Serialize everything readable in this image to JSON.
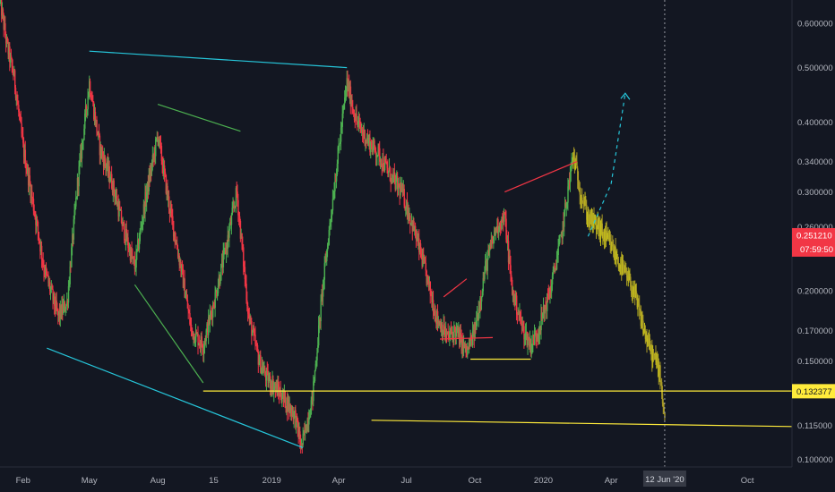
{
  "chart_data": {
    "type": "candlestick",
    "y_scale": "log",
    "ylim": [
      0.097,
      0.66
    ],
    "xlim": [
      "2018-01-01",
      "2020-11-30"
    ],
    "y_ticks": [
      {
        "value": 0.6,
        "label": "0.600000"
      },
      {
        "value": 0.5,
        "label": "0.500000"
      },
      {
        "value": 0.4,
        "label": "0.400000"
      },
      {
        "value": 0.34,
        "label": "0.340000"
      },
      {
        "value": 0.3,
        "label": "0.300000"
      },
      {
        "value": 0.26,
        "label": "0.260000"
      },
      {
        "value": 0.2,
        "label": "0.200000"
      },
      {
        "value": 0.17,
        "label": "0.170000"
      },
      {
        "value": 0.15,
        "label": "0.150000"
      },
      {
        "value": 0.115,
        "label": "0.115000"
      },
      {
        "value": 0.1,
        "label": "0.100000"
      }
    ],
    "x_ticks": [
      {
        "date": "2018-02-01",
        "label": "Feb"
      },
      {
        "date": "2018-05-01",
        "label": "May"
      },
      {
        "date": "2018-08-01",
        "label": "Aug"
      },
      {
        "date": "2018-10-15",
        "label": "15"
      },
      {
        "date": "2019-01-01",
        "label": "2019"
      },
      {
        "date": "2019-04-01",
        "label": "Apr"
      },
      {
        "date": "2019-07-01",
        "label": "Jul"
      },
      {
        "date": "2019-10-01",
        "label": "Oct"
      },
      {
        "date": "2020-01-01",
        "label": "2020"
      },
      {
        "date": "2020-04-01",
        "label": "Apr"
      },
      {
        "date": "2020-10-01",
        "label": "Oct"
      }
    ],
    "current_price": {
      "value": 0.25121,
      "label": "0.251210",
      "color": "#f23645"
    },
    "countdown": {
      "label": "07:59:50",
      "color": "#f23645"
    },
    "level_price": {
      "value": 0.132377,
      "label": "0.132377",
      "color": "#ffeb3b"
    },
    "crosshair": {
      "date": "2020-06-12",
      "label": "12 Jun '20"
    },
    "price_path": [
      [
        "2018-01-01",
        0.66
      ],
      [
        "2018-01-10",
        0.55
      ],
      [
        "2018-01-20",
        0.48
      ],
      [
        "2018-02-01",
        0.36
      ],
      [
        "2018-02-20",
        0.26
      ],
      [
        "2018-03-01",
        0.22
      ],
      [
        "2018-03-20",
        0.18
      ],
      [
        "2018-04-01",
        0.19
      ],
      [
        "2018-04-15",
        0.31
      ],
      [
        "2018-05-01",
        0.47
      ],
      [
        "2018-05-15",
        0.36
      ],
      [
        "2018-06-01",
        0.31
      ],
      [
        "2018-06-15",
        0.26
      ],
      [
        "2018-07-01",
        0.22
      ],
      [
        "2018-07-15",
        0.29
      ],
      [
        "2018-08-01",
        0.38
      ],
      [
        "2018-08-15",
        0.29
      ],
      [
        "2018-09-01",
        0.22
      ],
      [
        "2018-09-15",
        0.17
      ],
      [
        "2018-10-01",
        0.16
      ],
      [
        "2018-10-15",
        0.19
      ],
      [
        "2018-11-01",
        0.24
      ],
      [
        "2018-11-15",
        0.3
      ],
      [
        "2018-12-01",
        0.18
      ],
      [
        "2018-12-15",
        0.15
      ],
      [
        "2018-12-25",
        0.14
      ],
      [
        "2019-01-15",
        0.13
      ],
      [
        "2019-02-01",
        0.12
      ],
      [
        "2019-02-10",
        0.105
      ],
      [
        "2019-02-25",
        0.13
      ],
      [
        "2019-03-10",
        0.2
      ],
      [
        "2019-03-25",
        0.3
      ],
      [
        "2019-04-12",
        0.47
      ],
      [
        "2019-04-25",
        0.4
      ],
      [
        "2019-05-10",
        0.37
      ],
      [
        "2019-05-25",
        0.35
      ],
      [
        "2019-06-10",
        0.32
      ],
      [
        "2019-06-25",
        0.3
      ],
      [
        "2019-07-10",
        0.26
      ],
      [
        "2019-07-25",
        0.22
      ],
      [
        "2019-08-10",
        0.18
      ],
      [
        "2019-08-25",
        0.165
      ],
      [
        "2019-09-05",
        0.17
      ],
      [
        "2019-09-20",
        0.155
      ],
      [
        "2019-10-01",
        0.17
      ],
      [
        "2019-10-15",
        0.22
      ],
      [
        "2019-10-30",
        0.26
      ],
      [
        "2019-11-10",
        0.27
      ],
      [
        "2019-11-20",
        0.2
      ],
      [
        "2019-12-05",
        0.17
      ],
      [
        "2019-12-15",
        0.16
      ],
      [
        "2019-12-25",
        0.17
      ],
      [
        "2020-01-10",
        0.2
      ],
      [
        "2020-01-25",
        0.25
      ],
      [
        "2020-02-10",
        0.35
      ],
      [
        "2020-02-20",
        0.3
      ],
      [
        "2020-03-01",
        0.27
      ],
      [
        "2020-03-15",
        0.26
      ],
      [
        "2020-04-01",
        0.24
      ],
      [
        "2020-04-15",
        0.22
      ],
      [
        "2020-05-01",
        0.2
      ],
      [
        "2020-05-15",
        0.17
      ],
      [
        "2020-05-25",
        0.155
      ],
      [
        "2020-06-05",
        0.145
      ],
      [
        "2020-06-12",
        0.118
      ]
    ],
    "annotations": [
      {
        "name": "trendline-cyan-top",
        "color": "#26c6da",
        "style": "solid",
        "points": [
          [
            "2018-05-01",
            0.535
          ],
          [
            "2019-04-12",
            0.5
          ]
        ]
      },
      {
        "name": "trendline-cyan-bottom",
        "color": "#26c6da",
        "style": "solid",
        "points": [
          [
            "2018-03-05",
            0.158
          ],
          [
            "2019-02-12",
            0.105
          ]
        ]
      },
      {
        "name": "trendline-green-top",
        "color": "#4caf50",
        "style": "solid",
        "points": [
          [
            "2018-08-01",
            0.43
          ],
          [
            "2018-11-20",
            0.385
          ]
        ]
      },
      {
        "name": "trendline-green-bottom",
        "color": "#4caf50",
        "style": "solid",
        "points": [
          [
            "2018-07-01",
            0.205
          ],
          [
            "2018-10-01",
            0.137
          ]
        ]
      },
      {
        "name": "support-line-upper",
        "color": "#ffeb3b",
        "style": "solid",
        "points": [
          [
            "2018-10-01",
            0.1325
          ],
          [
            "2020-11-30",
            0.1325
          ]
        ]
      },
      {
        "name": "support-line-lower",
        "color": "#ffeb3b",
        "style": "solid",
        "points": [
          [
            "2019-05-15",
            0.1175
          ],
          [
            "2020-11-30",
            0.1145
          ]
        ]
      },
      {
        "name": "trendline-red-upper",
        "color": "#f23645",
        "style": "solid",
        "points": [
          [
            "2019-11-10",
            0.3
          ],
          [
            "2020-02-15",
            0.34
          ]
        ]
      },
      {
        "name": "trendline-red-small",
        "color": "#f23645",
        "style": "solid",
        "points": [
          [
            "2019-08-20",
            0.195
          ],
          [
            "2019-09-20",
            0.21
          ]
        ]
      },
      {
        "name": "trendline-red-low",
        "color": "#f23645",
        "style": "solid",
        "points": [
          [
            "2019-08-15",
            0.164
          ],
          [
            "2019-10-25",
            0.165
          ]
        ]
      },
      {
        "name": "trendline-yellow-low",
        "color": "#ffeb3b",
        "style": "solid",
        "points": [
          [
            "2019-09-25",
            0.151
          ],
          [
            "2019-12-15",
            0.151
          ]
        ]
      },
      {
        "name": "projection-dashed",
        "color": "#26c6da",
        "style": "dashed",
        "points": [
          [
            "2020-03-01",
            0.25
          ],
          [
            "2020-04-01",
            0.31
          ],
          [
            "2020-04-20",
            0.45
          ]
        ]
      }
    ]
  }
}
